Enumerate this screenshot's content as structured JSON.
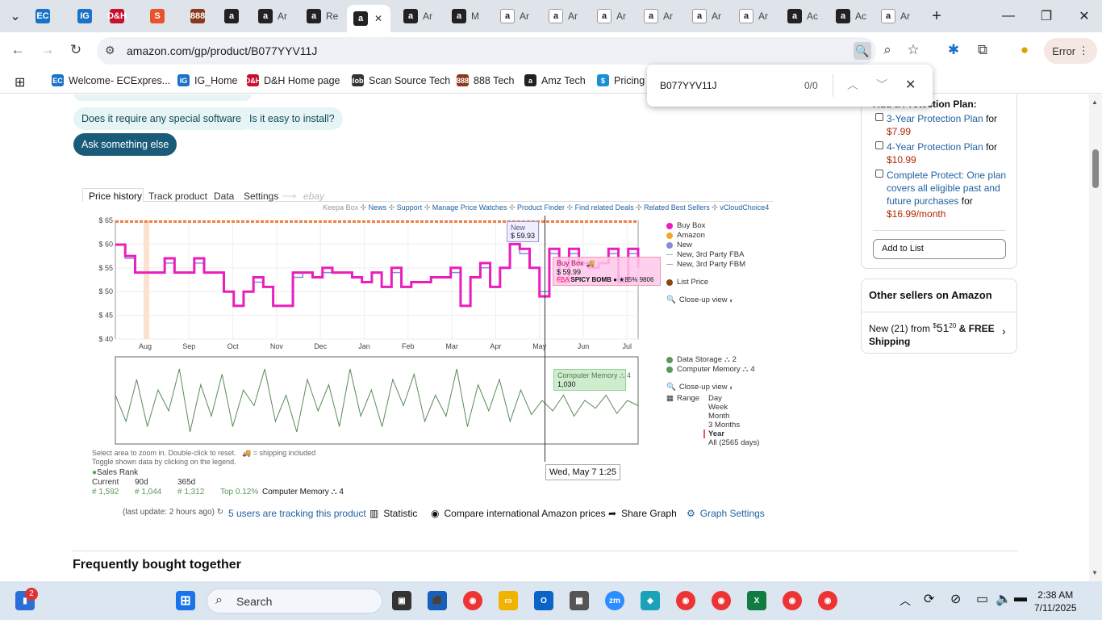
{
  "browser": {
    "tabs": [
      {
        "label": "",
        "favicon": "EC",
        "color": "#1a73c8"
      },
      {
        "label": "",
        "favicon": "IG",
        "color": "#1a73c8"
      },
      {
        "label": "",
        "favicon": "D&H",
        "color": "#c8102e"
      },
      {
        "label": "",
        "favicon": "S",
        "color": "#e8542a"
      },
      {
        "label": "",
        "favicon": "888",
        "color": "#8a3a1a"
      },
      {
        "label": "",
        "favicon": "a",
        "color": "#222"
      },
      {
        "label": "Ar",
        "favicon": "a",
        "color": "#222"
      },
      {
        "label": "Re",
        "favicon": "a",
        "color": "#222"
      },
      {
        "label": "",
        "favicon": "a",
        "color": "#222",
        "active": true
      },
      {
        "label": "Ar",
        "favicon": "a",
        "color": "#222"
      },
      {
        "label": "M",
        "favicon": "a",
        "color": "#222"
      },
      {
        "label": "Ar",
        "favicon": "a",
        "color": "#fff"
      },
      {
        "label": "Ar",
        "favicon": "a",
        "color": "#fff"
      },
      {
        "label": "Ar",
        "favicon": "a",
        "color": "#fff"
      },
      {
        "label": "Ar",
        "favicon": "a",
        "color": "#fff"
      },
      {
        "label": "Ar",
        "favicon": "a",
        "color": "#fff"
      },
      {
        "label": "Ar",
        "favicon": "a",
        "color": "#fff"
      },
      {
        "label": "Ac",
        "favicon": "a",
        "color": "#222"
      },
      {
        "label": "Ac",
        "favicon": "a",
        "color": "#222"
      },
      {
        "label": "Ar",
        "favicon": "a",
        "color": "#fff"
      }
    ],
    "url": "amazon.com/gp/product/B077YYV11J",
    "error_label": "Error",
    "bookmarks": [
      {
        "label": "Welcome- ECExpres...",
        "icon": "EC",
        "color": "#1a73c8"
      },
      {
        "label": "IG_Home",
        "icon": "IG",
        "color": "#1a73c8"
      },
      {
        "label": "D&H Home page",
        "icon": "D&H",
        "color": "#c8102e"
      },
      {
        "label": "Scan Source Tech",
        "icon": "globe",
        "color": "#333"
      },
      {
        "label": "888 Tech",
        "icon": "888",
        "color": "#8a3a1a"
      },
      {
        "label": "Amz Tech",
        "icon": "a",
        "color": "#222"
      },
      {
        "label": "Pricing",
        "icon": "$",
        "color": "#1a8fd8"
      }
    ],
    "find": {
      "query": "B077YYV11J",
      "count": "0/0"
    }
  },
  "questions": {
    "chips": [
      "Does it require any special software?",
      "Is it easy to install?"
    ],
    "ask_label": "Ask something else"
  },
  "keepa": {
    "tabs": [
      "Price history",
      "Track product",
      "Data",
      "Settings",
      "ebay"
    ],
    "links": {
      "keepa_box": "Keepa Box",
      "items": [
        "News",
        "Support",
        "Manage Price Watches",
        "Product Finder",
        "Find related Deals",
        "Related Best Sellers",
        "vCloudChoice4"
      ]
    },
    "legend_price": [
      {
        "label": "Buy Box",
        "color": "#e91ebc"
      },
      {
        "label": "Amazon",
        "color": "#f5a623"
      },
      {
        "label": "New",
        "color": "#8888dd"
      },
      {
        "label": "New, 3rd Party FBA",
        "color": "#aaaaaa"
      },
      {
        "label": "New, 3rd Party FBM",
        "color": "#aaaaaa"
      },
      {
        "label": "List Price",
        "color": "#8b4513"
      }
    ],
    "close_up": "Close-up view",
    "legend_rank": [
      {
        "label": "Data Storage",
        "count": "2",
        "color": "#5a9a5a"
      },
      {
        "label": "Computer Memory",
        "count": "4",
        "color": "#5a9a5a"
      }
    ],
    "range_label": "Range",
    "ranges": [
      "Day",
      "Week",
      "Month",
      "3 Months",
      "Year",
      "All (2565 days)"
    ],
    "tooltip_new": {
      "label": "New",
      "price": "$ 59.93"
    },
    "tooltip_buybox": {
      "label": "Buy Box",
      "price": "$ 59.99",
      "fba": "FBA",
      "seller": "SPICY BOMB",
      "rating": "85%",
      "reviews": "9806"
    },
    "tooltip_rank": {
      "label": "Computer Memory",
      "count": "4",
      "value": "1,030"
    },
    "date_label": "Wed, May 7 1:25",
    "select_hint": "Select area to zoom in. Double-click to reset.",
    "shipping_hint": "= shipping included",
    "toggle_hint": "Toggle shown data by clicking on the legend.",
    "sales_rank_label": "Sales Rank",
    "stats_headers": [
      "Current",
      "90d",
      "365d"
    ],
    "stats_values": [
      "1,592",
      "1,044",
      "1,312"
    ],
    "top_pct": "Top 0.12%",
    "top_cat": "Computer Memory",
    "top_count": "4",
    "last_update": "(last update: 2 hours ago)",
    "tracking": "5 users are tracking this product",
    "statistic": "Statistic",
    "compare": "Compare international Amazon prices",
    "share": "Share Graph",
    "graph_settings": "Graph Settings"
  },
  "chart_data": [
    {
      "type": "line",
      "title": "",
      "ylabel": "",
      "x_ticks": [
        "Aug",
        "Sep",
        "Oct",
        "Nov",
        "Dec",
        "Jan",
        "Feb",
        "Mar",
        "Apr",
        "May",
        "Jun",
        "Jul"
      ],
      "y_ticks": [
        "$ 65",
        "$ 60",
        "$ 55",
        "$ 50",
        "$ 45",
        "$ 40"
      ],
      "ylim": [
        40,
        65
      ],
      "series": [
        {
          "name": "Buy Box",
          "color": "#e91ebc",
          "values": [
            59.9,
            57.5,
            54,
            54,
            54,
            57,
            54,
            54,
            57,
            54,
            54,
            50,
            47,
            50,
            53,
            51,
            47,
            47,
            54,
            54,
            53,
            55,
            54,
            54,
            53,
            52,
            54,
            51,
            55,
            51,
            52,
            52,
            53,
            53,
            55,
            47,
            53,
            56,
            51,
            55,
            60,
            59,
            55,
            49,
            59,
            52,
            59,
            56,
            55,
            56,
            59,
            52,
            59,
            55
          ]
        },
        {
          "name": "New",
          "color": "#8888dd",
          "values": [
            59.9,
            57,
            54,
            54,
            54,
            56,
            54,
            54,
            56,
            54,
            54,
            50,
            47,
            50,
            52,
            51,
            47,
            47,
            53,
            54,
            53,
            54,
            54,
            54,
            53,
            52,
            54,
            51,
            54,
            51,
            52,
            52,
            53,
            53,
            54,
            47,
            53,
            55,
            51,
            55,
            59.93,
            58,
            55,
            50,
            58,
            52,
            58,
            56,
            55,
            56,
            58,
            53,
            58,
            55
          ]
        }
      ]
    },
    {
      "type": "line",
      "title": "",
      "series": [
        {
          "name": "Computer Memory",
          "color": "#5a8a5a",
          "values": [
            1400,
            900,
            1700,
            800,
            1500,
            1100,
            1900,
            700,
            1600,
            1000,
            1800,
            800,
            1500,
            1200,
            1900,
            900,
            1400,
            700,
            1700,
            1100,
            1600,
            800,
            1900,
            1000,
            1500,
            800,
            1700,
            1200,
            1800,
            900,
            1400,
            1000,
            1900,
            800,
            1600,
            1100,
            1700,
            900,
            1500,
            1030,
            1300,
            1100,
            1400,
            1000,
            1300,
            1150,
            1400,
            1050,
            1300,
            1200
          ]
        }
      ]
    }
  ],
  "protection": {
    "heading": "Add a Protection Plan:",
    "plans": [
      {
        "name": "3-Year Protection Plan",
        "for": "for",
        "price": "$7.99"
      },
      {
        "name": "4-Year Protection Plan",
        "for": "for",
        "price": "$10.99"
      },
      {
        "name": "Complete Protect: One plan covers all eligible past and future purchases",
        "for": "for",
        "price": "$16.99/month"
      }
    ],
    "add_to_list": "Add to List"
  },
  "other_sellers": {
    "title": "Other sellers on Amazon",
    "new_label": "New (21) from",
    "price_sym": "$",
    "price_whole": "51",
    "price_frac": "20",
    "shipping": "& FREE Shipping"
  },
  "fbt_title": "Frequently bought together",
  "taskbar": {
    "search_label": "Search",
    "notif_count": "2",
    "time": "2:38 AM",
    "date": "7/11/2025"
  }
}
